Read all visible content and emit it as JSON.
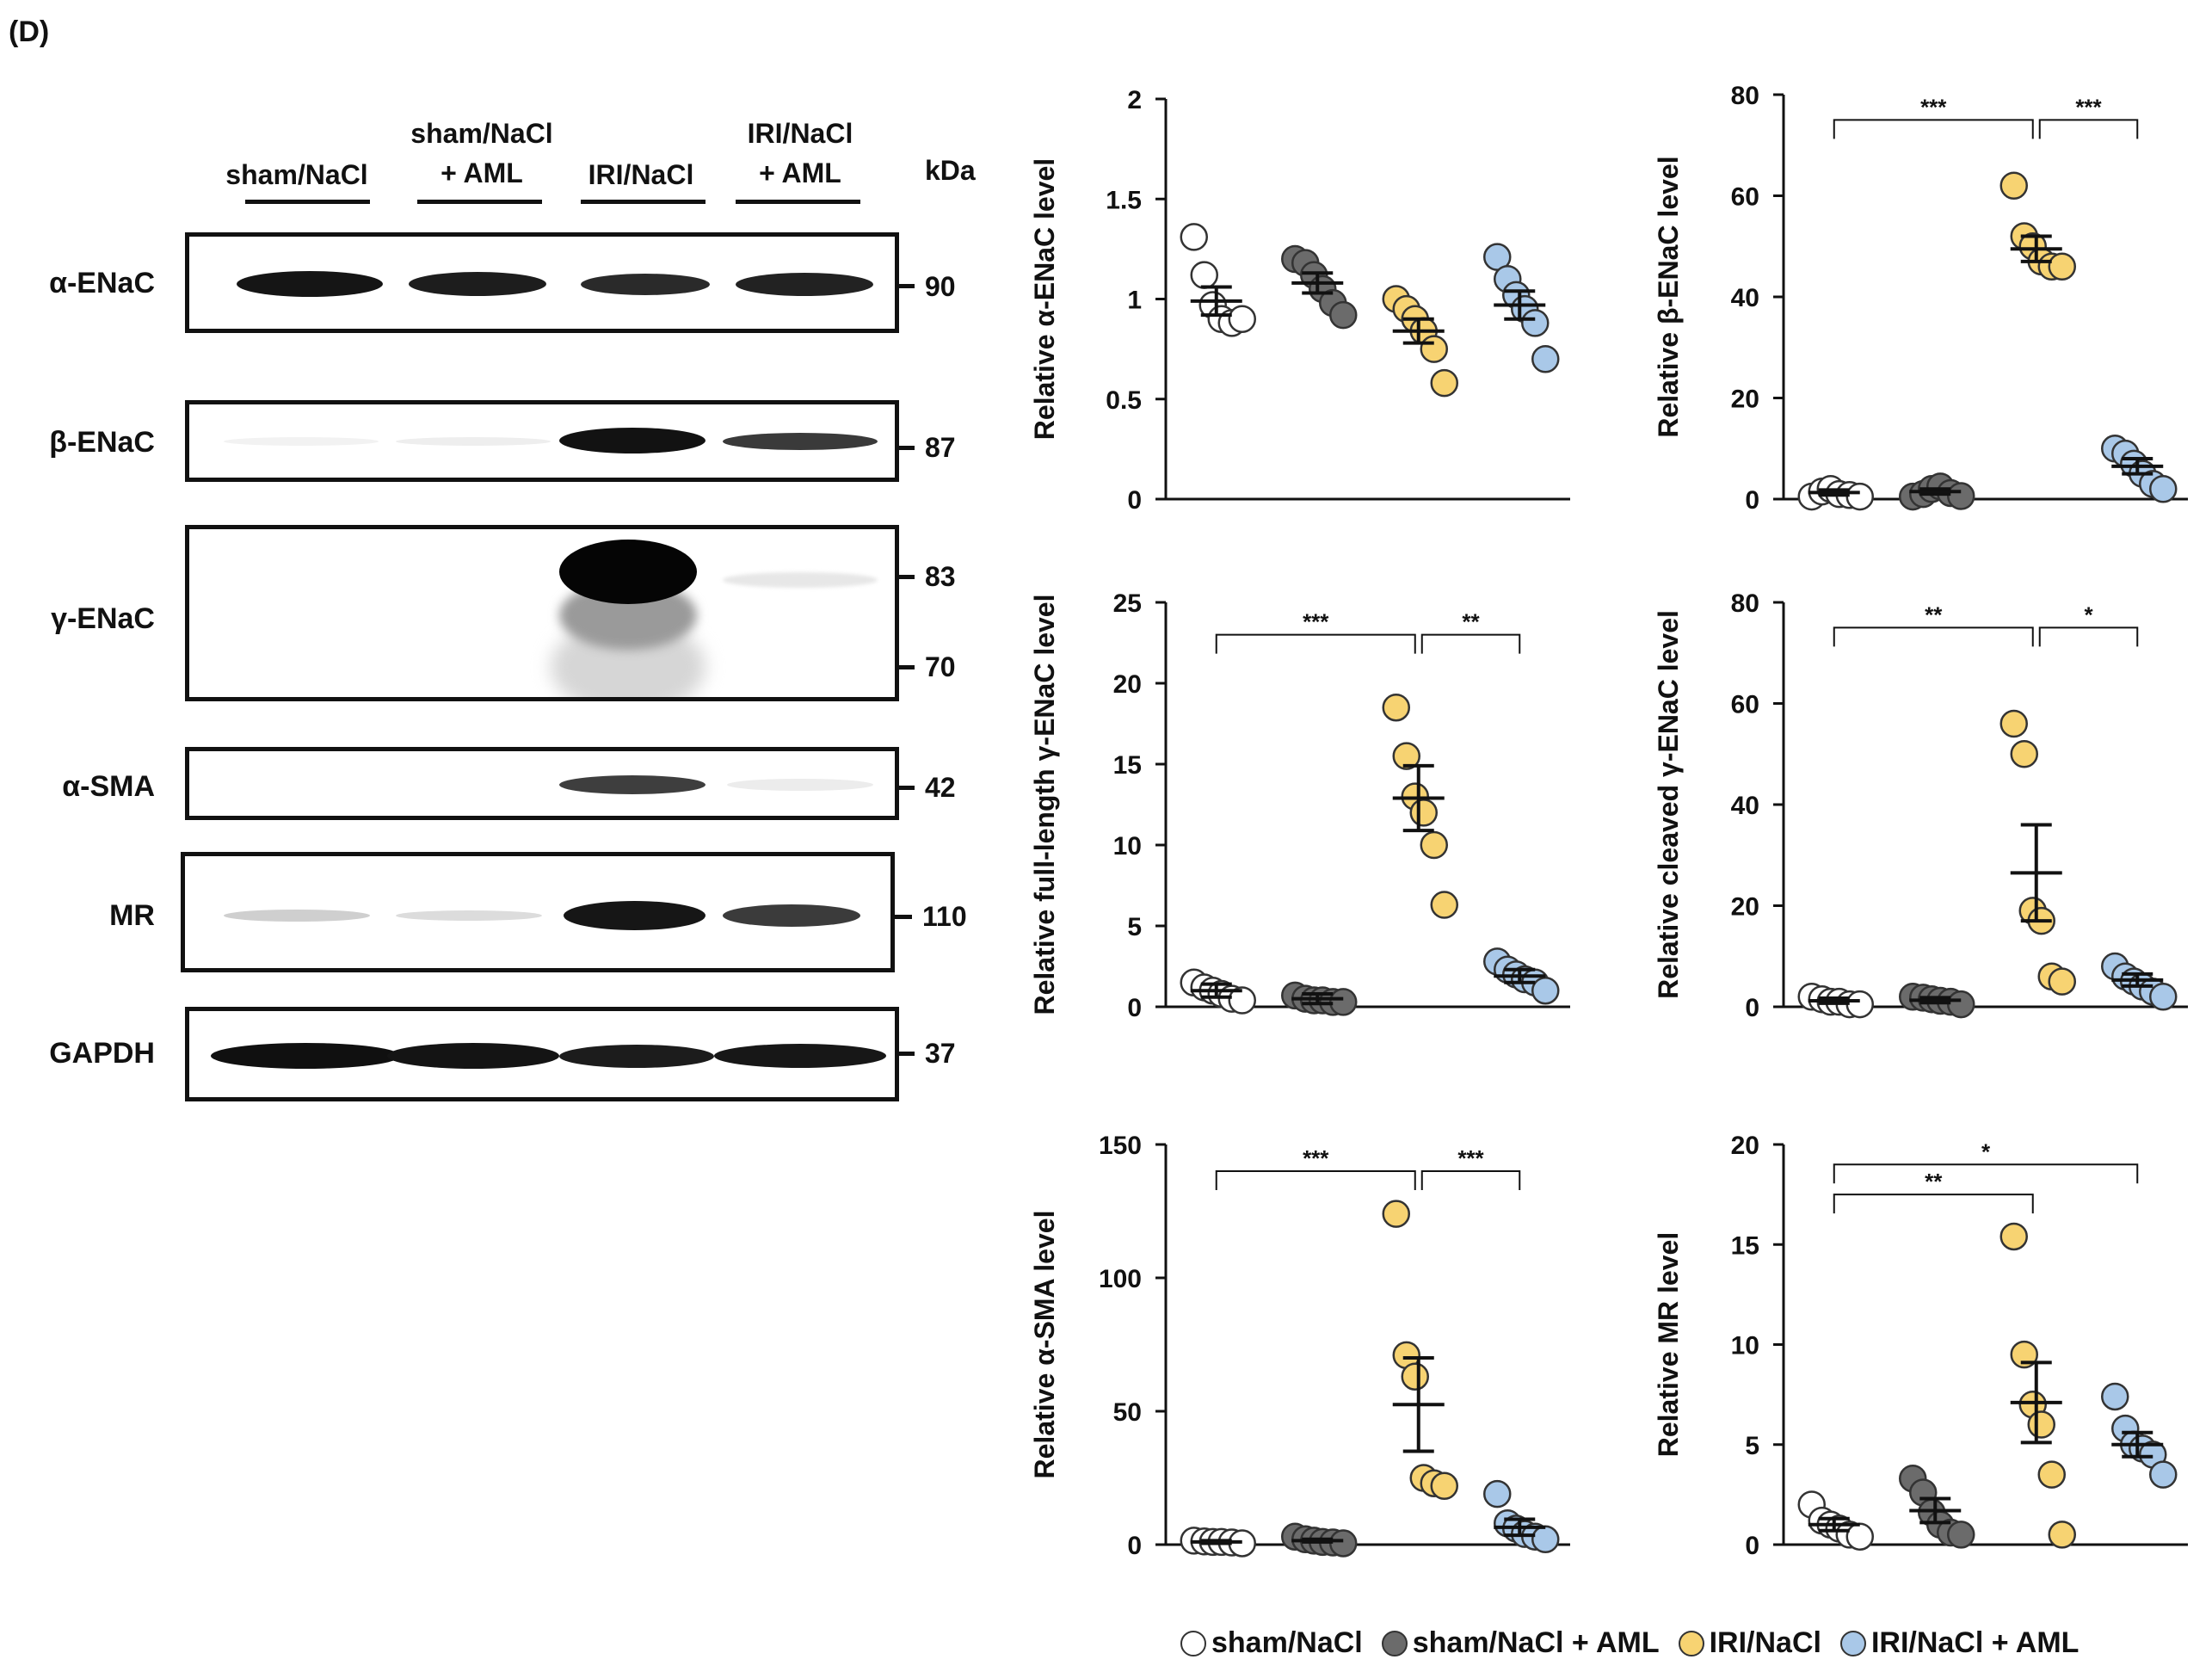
{
  "panel_label": "(D)",
  "colors": {
    "sham_nacl": "#ffffff",
    "sham_nacl_aml": "#6b6b6b",
    "iri_nacl": "#f7d372",
    "iri_nacl_aml": "#a9c8e8",
    "ink": "#111111"
  },
  "blot": {
    "lanes": [
      {
        "line1": "",
        "line2": "sham/NaCl"
      },
      {
        "line1": "sham/NaCl",
        "line2": "+ AML"
      },
      {
        "line1": "",
        "line2": "IRI/NaCl"
      },
      {
        "line1": "IRI/NaCl",
        "line2": "+ AML"
      }
    ],
    "kda_label": "kDa",
    "rows": [
      {
        "protein": "α-ENaC",
        "markers": [
          "90"
        ]
      },
      {
        "protein": "β-ENaC",
        "markers": [
          "87"
        ]
      },
      {
        "protein": "γ-ENaC",
        "markers": [
          "83",
          "70"
        ]
      },
      {
        "protein": "α-SMA",
        "markers": [
          "42"
        ]
      },
      {
        "protein": "MR",
        "markers": [
          "110"
        ]
      },
      {
        "protein": "GAPDH",
        "markers": [
          "37"
        ]
      }
    ]
  },
  "legend": [
    {
      "label": "sham/NaCl",
      "color": "#ffffff"
    },
    {
      "label": "sham/NaCl + AML",
      "color": "#6b6b6b"
    },
    {
      "label": "IRI/NaCl",
      "color": "#f7d372"
    },
    {
      "label": "IRI/NaCl + AML",
      "color": "#a9c8e8"
    }
  ],
  "chart_data": [
    {
      "type": "scatter",
      "ylabel": "Relative α-ENaC level",
      "ylim": [
        0,
        2
      ],
      "yticks": [
        "0",
        "0.5",
        "1",
        "1.5",
        "2"
      ],
      "groups": [
        "sham/NaCl",
        "sham/NaCl + AML",
        "IRI/NaCl",
        "IRI/NaCl + AML"
      ],
      "points": [
        [
          1.31,
          1.12,
          0.97,
          0.9,
          0.88,
          0.9
        ],
        [
          1.2,
          1.18,
          1.12,
          1.05,
          0.98,
          0.92
        ],
        [
          1.0,
          0.95,
          0.9,
          0.84,
          0.75,
          0.58
        ],
        [
          1.21,
          1.1,
          1.02,
          0.95,
          0.88,
          0.7
        ]
      ],
      "mean": [
        0.99,
        1.08,
        0.84,
        0.97
      ],
      "sem": [
        0.07,
        0.05,
        0.06,
        0.07
      ],
      "significance": []
    },
    {
      "type": "scatter",
      "ylabel": "Relative β-ENaC level",
      "ylim": [
        0,
        80
      ],
      "yticks": [
        "0",
        "20",
        "40",
        "60",
        "80"
      ],
      "groups": [
        "sham/NaCl",
        "sham/NaCl + AML",
        "IRI/NaCl",
        "IRI/NaCl + AML"
      ],
      "points": [
        [
          0.5,
          1.5,
          2.0,
          1.0,
          0.8,
          0.5
        ],
        [
          0.5,
          1.0,
          2.0,
          2.5,
          1.2,
          0.6
        ],
        [
          62,
          52,
          50,
          47,
          46,
          46
        ],
        [
          10,
          9,
          7,
          5,
          3,
          2
        ]
      ],
      "mean": [
        1.3,
        1.5,
        49.5,
        6.5
      ],
      "sem": [
        0.5,
        0.5,
        2.5,
        1.5
      ],
      "significance": [
        {
          "from": 0,
          "to": 2,
          "label": "***",
          "y": 75
        },
        {
          "from": 2,
          "to": 3,
          "label": "***",
          "y": 75
        }
      ]
    },
    {
      "type": "scatter",
      "ylabel": "Relative full-length γ-ENaC level",
      "ylim": [
        0,
        25
      ],
      "yticks": [
        "0",
        "5",
        "10",
        "15",
        "20",
        "25"
      ],
      "groups": [
        "sham/NaCl",
        "sham/NaCl + AML",
        "IRI/NaCl",
        "IRI/NaCl + AML"
      ],
      "points": [
        [
          1.5,
          1.2,
          1.0,
          0.8,
          0.5,
          0.4
        ],
        [
          0.7,
          0.5,
          0.4,
          0.4,
          0.3,
          0.3
        ],
        [
          18.5,
          15.5,
          13.0,
          12.0,
          10.0,
          6.3
        ],
        [
          2.8,
          2.3,
          2.0,
          1.7,
          1.5,
          1.0
        ]
      ],
      "mean": [
        1.0,
        0.5,
        12.9,
        1.9
      ],
      "sem": [
        0.4,
        0.3,
        2.0,
        0.4
      ],
      "significance": [
        {
          "from": 0,
          "to": 2,
          "label": "***",
          "y": 23
        },
        {
          "from": 2,
          "to": 3,
          "label": "**",
          "y": 23
        }
      ]
    },
    {
      "type": "scatter",
      "ylabel": "Relative cleaved γ-ENaC level",
      "ylim": [
        0,
        80
      ],
      "yticks": [
        "0",
        "20",
        "40",
        "60",
        "80"
      ],
      "groups": [
        "sham/NaCl",
        "sham/NaCl + AML",
        "IRI/NaCl",
        "IRI/NaCl + AML"
      ],
      "points": [
        [
          2.0,
          1.5,
          1.0,
          1.0,
          0.5,
          0.5
        ],
        [
          2.0,
          1.8,
          1.5,
          1.2,
          1.0,
          0.5
        ],
        [
          56,
          50,
          19,
          17,
          6,
          5
        ],
        [
          8,
          6,
          5,
          4,
          3,
          2
        ]
      ],
      "mean": [
        1.2,
        1.3,
        26.5,
        5.3
      ],
      "sem": [
        0.5,
        0.5,
        9.5,
        1.2
      ],
      "significance": [
        {
          "from": 0,
          "to": 2,
          "label": "**",
          "y": 75
        },
        {
          "from": 2,
          "to": 3,
          "label": "*",
          "y": 75
        }
      ]
    },
    {
      "type": "scatter",
      "ylabel": "Relative α-SMA level",
      "ylim": [
        0,
        150
      ],
      "yticks": [
        "0",
        "50",
        "100",
        "150"
      ],
      "groups": [
        "sham/NaCl",
        "sham/NaCl + AML",
        "IRI/NaCl",
        "IRI/NaCl + AML"
      ],
      "points": [
        [
          1.5,
          1.2,
          1.0,
          1.0,
          0.8,
          0.5
        ],
        [
          3.0,
          2.0,
          1.5,
          1.0,
          0.8,
          0.5
        ],
        [
          124,
          71,
          63,
          25,
          23,
          22
        ],
        [
          19,
          8,
          6,
          4,
          3,
          2
        ]
      ],
      "mean": [
        1.0,
        1.5,
        52.5,
        6.5
      ],
      "sem": [
        0.5,
        0.5,
        17.5,
        3.0
      ],
      "significance": [
        {
          "from": 0,
          "to": 2,
          "label": "***",
          "y": 140
        },
        {
          "from": 2,
          "to": 3,
          "label": "***",
          "y": 140
        }
      ]
    },
    {
      "type": "scatter",
      "ylabel": "Relative MR level",
      "ylim": [
        0,
        20
      ],
      "yticks": [
        "0",
        "5",
        "10",
        "15",
        "20"
      ],
      "groups": [
        "sham/NaCl",
        "sham/NaCl + AML",
        "IRI/NaCl",
        "IRI/NaCl + AML"
      ],
      "points": [
        [
          2.0,
          1.2,
          1.0,
          0.8,
          0.5,
          0.4
        ],
        [
          3.3,
          2.6,
          1.6,
          1.0,
          0.6,
          0.5
        ],
        [
          15.4,
          9.5,
          7.0,
          6.0,
          3.5,
          0.5
        ],
        [
          7.4,
          5.8,
          5.0,
          4.8,
          4.5,
          3.5
        ]
      ],
      "mean": [
        1.0,
        1.7,
        7.1,
        5.0
      ],
      "sem": [
        0.3,
        0.6,
        2.0,
        0.6
      ],
      "significance": [
        {
          "from": 0,
          "to": 3,
          "label": "*",
          "y": 19
        },
        {
          "from": 0,
          "to": 2,
          "label": "**",
          "y": 17.5
        }
      ]
    }
  ]
}
